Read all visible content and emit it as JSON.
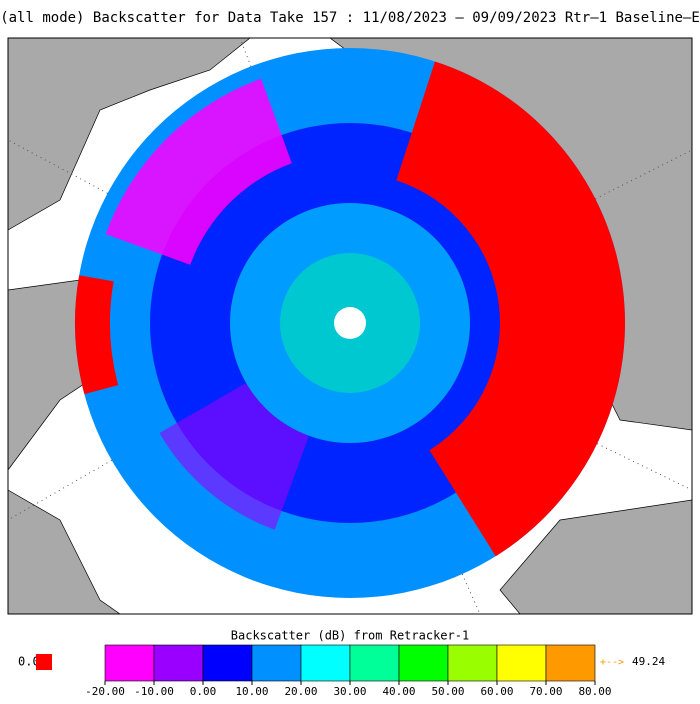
{
  "title": "(all mode) Backscatter for Data Take 157 : 11/08/2023 – 09/09/2023 Rtr–1 Baseline–E",
  "colorbar": {
    "label": "Backscatter (dB) from Retracker-1",
    "ticks": [
      {
        "value": -20,
        "label": "-20.00"
      },
      {
        "value": -10,
        "label": "-10.00"
      },
      {
        "value": 0,
        "label": "0.00"
      },
      {
        "value": 10,
        "label": "10.00"
      },
      {
        "value": 20,
        "label": "20.00"
      },
      {
        "value": 30,
        "label": "30.00"
      },
      {
        "value": 40,
        "label": "40.00"
      },
      {
        "value": 50,
        "label": "50.00"
      },
      {
        "value": 60,
        "label": "60.00"
      },
      {
        "value": 70,
        "label": "70.00"
      },
      {
        "value": 80,
        "label": "80.00"
      }
    ],
    "colors": [
      "#ff00ff",
      "#9900ff",
      "#0000ff",
      "#0090ff",
      "#00ffff",
      "#00ff99",
      "#00ff00",
      "#99ff00",
      "#ffff00",
      "#ff9900"
    ],
    "below_label": "0.0",
    "below_color": "#ff0000",
    "above_label": "+-->",
    "above_value": "49.24",
    "above_color": "#ff9900"
  }
}
